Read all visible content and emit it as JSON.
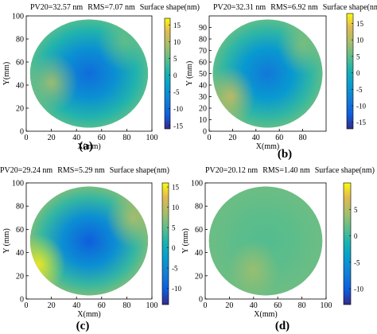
{
  "chart_data": [
    {
      "type": "heatmap",
      "panel_label": "(a)",
      "pv_text": "PV20=32.57 nm",
      "rms_text": "RMS=7.07 nm",
      "colorbar_title": "Surface shape(nm)",
      "xlabel": "X(mm)",
      "ylabel": "Y(mm)",
      "xlim": [
        0,
        100
      ],
      "ylim": [
        0,
        100
      ],
      "xticks": [
        "0",
        "20",
        "40",
        "60",
        "80",
        "100"
      ],
      "yticks": [
        "0",
        "20",
        "40",
        "60",
        "80",
        "100"
      ],
      "clim": [
        -16,
        17
      ],
      "cticks": [
        15,
        10,
        5,
        0,
        -5,
        -10,
        -15
      ],
      "center_value": -10,
      "edge_value": 4,
      "hotspots": [
        {
          "x": 20,
          "y": 42,
          "value": 9
        },
        {
          "x": 78,
          "y": 78,
          "value": 5
        }
      ]
    },
    {
      "type": "heatmap",
      "panel_label": "(b)",
      "pv_text": "PV20=32.31 nm",
      "rms_text": "RMS=6.92 nm",
      "colorbar_title": "Surface shape(nm)",
      "xlabel": "X(mm)",
      "ylabel": "Y (mm)",
      "xlim": [
        0,
        100
      ],
      "ylim": [
        0,
        100
      ],
      "xticks": [
        "0",
        "20",
        "40",
        "60",
        "80"
      ],
      "yticks": [
        "0",
        "10",
        "20",
        "30",
        "40",
        "50",
        "60",
        "70",
        "80",
        "90"
      ],
      "clim": [
        -17,
        18
      ],
      "cticks": [
        15,
        10,
        5,
        0,
        -5,
        -10,
        -15
      ],
      "center_value": -9,
      "edge_value": 5,
      "hotspots": [
        {
          "x": 18,
          "y": 30,
          "value": 12
        },
        {
          "x": 80,
          "y": 75,
          "value": 7
        }
      ]
    },
    {
      "type": "heatmap",
      "panel_label": "(c)",
      "pv_text": "PV20=29.24 nm",
      "rms_text": "RMS=5.29 nm",
      "colorbar_title": "Surface shape(nm)",
      "xlabel": "X(mm)",
      "ylabel": "Y (mm)",
      "xlim": [
        0,
        100
      ],
      "ylim": [
        0,
        100
      ],
      "xticks": [
        "0",
        "20",
        "40",
        "60",
        "80",
        "100"
      ],
      "yticks": [
        "0",
        "20",
        "40",
        "60",
        "80",
        "100"
      ],
      "clim": [
        -14,
        16
      ],
      "cticks": [
        15,
        10,
        5,
        0,
        -5,
        -10
      ],
      "center_value": -10,
      "edge_value": 6,
      "hotspots": [
        {
          "x": 10,
          "y": 30,
          "value": 15
        },
        {
          "x": 85,
          "y": 70,
          "value": 9
        }
      ]
    },
    {
      "type": "heatmap",
      "panel_label": "(d)",
      "pv_text": "PV20=20.12 nm",
      "rms_text": "RMS=1.40 nm",
      "colorbar_title": "Surface shape(nm)",
      "xlabel": "X(mm)",
      "ylabel": "Y (mm)",
      "xlim": [
        0,
        100
      ],
      "ylim": [
        0,
        100
      ],
      "xticks": [
        "0",
        "20",
        "40",
        "60",
        "80",
        "100"
      ],
      "yticks": [
        "0",
        "20",
        "40",
        "60",
        "80",
        "100"
      ],
      "clim": [
        -13,
        10
      ],
      "cticks": [
        5,
        0,
        -5,
        -10
      ],
      "center_value": 1,
      "edge_value": 2,
      "hotspots": [
        {
          "x": 40,
          "y": 25,
          "value": 4
        }
      ]
    }
  ]
}
